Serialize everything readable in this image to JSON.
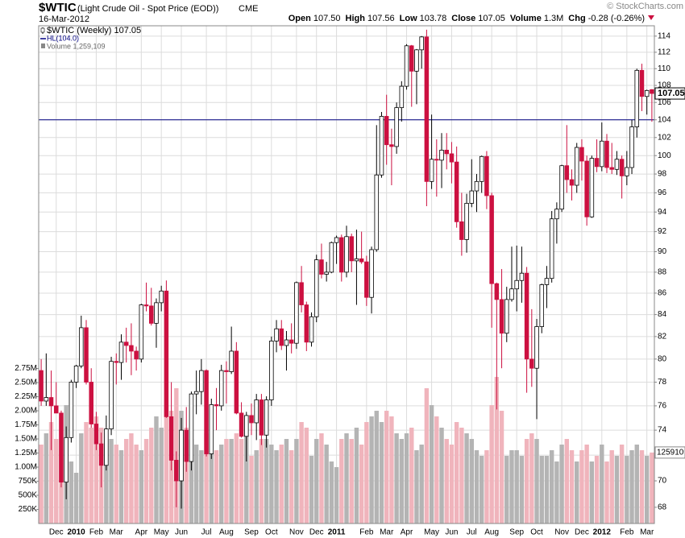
{
  "header": {
    "symbol": "$WTIC",
    "description": "(Light Crude Oil - Spot Price (EOD))",
    "exchange": "CME",
    "date": "16-Mar-2012",
    "copyright": "© StockCharts.com",
    "quote": [
      {
        "label": "Open",
        "value": "107.50"
      },
      {
        "label": "High",
        "value": "107.56"
      },
      {
        "label": "Low",
        "value": "103.78"
      },
      {
        "label": "Close",
        "value": "107.05"
      },
      {
        "label": "Volume",
        "value": "1.3M"
      },
      {
        "label": "Chg",
        "value": "-0.28 (-0.26%)"
      }
    ]
  },
  "chart_data": {
    "type": "candlestick",
    "legend": [
      "$WTIC (Weekly) 107.05",
      "HL(104.0)",
      "Volume 1,259,109"
    ],
    "hl_line": 104.0,
    "hl_color": "#000080",
    "up_color": "#000000",
    "down_color": "#cc1040",
    "volume_up_color": "#b4b4b4",
    "volume_down_color": "#f0b4bc",
    "log": true,
    "grid": true,
    "ylim": [
      66.8,
      115.3
    ],
    "yticks": [
      68,
      70,
      72,
      74,
      76,
      78,
      80,
      82,
      84,
      86,
      88,
      90,
      92,
      94,
      96,
      98,
      100,
      102,
      104,
      106,
      108,
      110,
      112,
      114
    ],
    "y2lim": [
      0,
      8830000
    ],
    "y2ticks": [
      {
        "value": 250000,
        "label": "250K"
      },
      {
        "value": 500000,
        "label": "500K"
      },
      {
        "value": 750000,
        "label": "750K"
      },
      {
        "value": 1000000,
        "label": "1.00M"
      },
      {
        "value": 1250000,
        "label": "1.25M"
      },
      {
        "value": 1500000,
        "label": "1.50M"
      },
      {
        "value": 1750000,
        "label": "1.75M"
      },
      {
        "value": 2000000,
        "label": "2.00M"
      },
      {
        "value": 2250000,
        "label": "2.25M"
      },
      {
        "value": 2500000,
        "label": "2.50M"
      },
      {
        "value": 2750000,
        "label": "2.75M"
      }
    ],
    "categories": [
      null,
      null,
      null,
      "Dec",
      null,
      null,
      null,
      "2010",
      null,
      null,
      null,
      "Feb",
      null,
      null,
      null,
      "Mar",
      null,
      null,
      null,
      null,
      "Apr",
      null,
      null,
      null,
      "May",
      null,
      null,
      null,
      "Jun",
      null,
      null,
      null,
      null,
      "Jul",
      null,
      null,
      null,
      "Aug",
      null,
      null,
      null,
      null,
      "Sep",
      null,
      null,
      null,
      "Oct",
      null,
      null,
      null,
      null,
      "Nov",
      null,
      null,
      null,
      "Dec",
      null,
      null,
      null,
      "2011",
      null,
      null,
      null,
      null,
      null,
      "Feb",
      null,
      null,
      null,
      "Mar",
      null,
      null,
      null,
      "Apr",
      null,
      null,
      null,
      null,
      "May",
      null,
      null,
      null,
      "Jun",
      null,
      null,
      null,
      "Jul",
      null,
      null,
      null,
      "Aug",
      null,
      null,
      null,
      null,
      "Sep",
      null,
      null,
      null,
      "Oct",
      null,
      null,
      null,
      null,
      "Nov",
      null,
      null,
      null,
      "Dec",
      null,
      null,
      null,
      "2012",
      null,
      null,
      null,
      null,
      "Feb",
      null,
      null,
      null,
      "Mar",
      null
    ],
    "open": [
      79.0,
      76.4,
      76.7,
      76.0,
      75.4,
      69.9,
      73.4,
      78.0,
      79.4,
      82.8,
      78.0,
      74.5,
      72.9,
      71.2,
      74.1,
      79.8,
      79.7,
      81.5,
      81.2,
      80.7,
      80.0,
      84.9,
      84.8,
      83.2,
      85.1,
      86.2,
      75.1,
      71.6,
      70.0,
      74.0,
      71.5,
      77.0,
      77.2,
      79.0,
      72.1,
      76.1,
      76.0,
      79.0,
      78.9,
      80.7,
      75.4,
      73.5,
      75.2,
      74.6,
      76.5,
      73.6,
      76.5,
      81.6,
      82.7,
      81.2,
      81.7,
      81.4,
      87.0,
      84.9,
      81.5,
      83.8,
      89.2,
      87.8,
      88.0,
      90.9,
      91.4,
      88.0,
      91.5,
      89.1,
      89.3,
      89.0,
      85.6,
      90.2,
      97.9,
      104.4,
      101.2,
      101.0,
      105.4,
      107.9,
      112.8,
      109.7,
      112.3,
      113.9,
      97.2,
      99.6,
      99.5,
      100.6,
      100.2,
      99.3,
      93.0,
      91.2,
      94.9,
      96.2,
      97.2,
      99.9,
      95.7,
      86.9,
      85.4,
      82.3,
      85.4,
      86.4,
      87.2,
      87.9,
      80.0,
      79.2,
      82.9,
      86.8,
      87.4,
      93.3,
      94.3,
      98.9,
      97.4,
      96.8,
      100.9,
      99.4,
      93.5,
      99.7,
      98.8,
      101.6,
      98.7,
      98.5,
      99.6,
      97.8,
      98.7,
      103.2,
      109.8,
      106.7,
      107.5
    ],
    "high": [
      80.0,
      80.5,
      79.0,
      78.0,
      75.6,
      74.3,
      78.2,
      79.5,
      83.9,
      83.5,
      79.2,
      75.5,
      73.8,
      75.2,
      80.2,
      80.5,
      82.2,
      82.8,
      83.2,
      81.1,
      85.0,
      87.0,
      86.5,
      85.5,
      86.7,
      87.2,
      78.0,
      72.3,
      75.0,
      75.9,
      77.2,
      79.0,
      80.0,
      79.1,
      76.6,
      77.5,
      79.5,
      79.8,
      82.9,
      81.5,
      76.3,
      75.5,
      76.2,
      77.0,
      77.0,
      76.8,
      82.0,
      83.5,
      83.5,
      82.5,
      83.2,
      87.1,
      88.6,
      85.2,
      84.2,
      89.7,
      90.8,
      89.0,
      91.0,
      91.6,
      91.7,
      92.6,
      91.8,
      92.2,
      92.0,
      89.6,
      90.5,
      103.4,
      104.9,
      106.9,
      103.0,
      106.0,
      108.5,
      113.0,
      112.9,
      112.4,
      114.0,
      114.8,
      104.6,
      101.8,
      102.5,
      102.5,
      101.5,
      101.0,
      96.0,
      95.9,
      99.6,
      98.0,
      100.0,
      100.5,
      96.0,
      87.0,
      88.3,
      86.6,
      90.5,
      90.6,
      90.5,
      88.5,
      84.5,
      83.6,
      86.9,
      88.6,
      94.1,
      95.0,
      99.0,
      103.4,
      98.5,
      101.4,
      101.8,
      100.0,
      100.0,
      101.8,
      103.7,
      102.4,
      101.4,
      100.5,
      100.0,
      100.5,
      104.0,
      110.0,
      110.6,
      107.5,
      107.56
    ],
    "low": [
      76.0,
      76.0,
      72.4,
      75.5,
      69.5,
      68.6,
      73.0,
      77.5,
      79.2,
      77.8,
      74.2,
      72.4,
      69.5,
      70.8,
      73.6,
      77.8,
      78.2,
      79.7,
      78.6,
      79.0,
      79.7,
      84.3,
      83.0,
      81.0,
      84.3,
      75.0,
      70.8,
      68.0,
      67.9,
      70.7,
      70.8,
      75.3,
      76.1,
      71.9,
      71.7,
      74.0,
      75.6,
      76.2,
      78.7,
      75.3,
      73.4,
      71.5,
      73.6,
      73.2,
      72.8,
      72.6,
      76.0,
      80.6,
      80.8,
      79.0,
      80.5,
      80.9,
      84.2,
      80.7,
      81.1,
      83.3,
      87.4,
      87.1,
      87.9,
      88.8,
      87.1,
      87.5,
      88.0,
      84.9,
      88.8,
      84.8,
      84.1,
      90.0,
      97.6,
      99.0,
      96.8,
      100.2,
      103.8,
      107.5,
      105.5,
      105.8,
      110.0,
      94.6,
      96.4,
      95.6,
      96.5,
      98.5,
      97.0,
      92.4,
      89.6,
      89.9,
      94.5,
      94.0,
      96.0,
      94.3,
      82.8,
      75.7,
      79.2,
      81.5,
      85.2,
      84.3,
      85.1,
      77.1,
      77.6,
      74.9,
      82.3,
      84.6,
      87.0,
      90.8,
      94.0,
      96.0,
      95.2,
      96.0,
      97.3,
      92.6,
      93.4,
      98.2,
      98.3,
      98.1,
      98.0,
      97.9,
      95.4,
      96.8,
      98.0,
      102.0,
      105.0,
      104.6,
      103.78
    ],
    "close": [
      76.4,
      76.7,
      76.0,
      75.4,
      69.9,
      73.4,
      78.0,
      79.4,
      82.8,
      78.0,
      74.5,
      72.9,
      71.2,
      74.1,
      79.8,
      79.7,
      81.5,
      81.2,
      80.7,
      80.0,
      84.9,
      84.8,
      83.2,
      85.1,
      86.2,
      75.1,
      71.6,
      70.0,
      74.0,
      71.5,
      77.0,
      77.2,
      79.0,
      72.1,
      76.1,
      76.0,
      79.0,
      78.9,
      80.7,
      75.4,
      73.5,
      75.2,
      74.6,
      76.5,
      73.6,
      76.5,
      81.6,
      82.7,
      81.2,
      81.7,
      81.4,
      87.0,
      84.9,
      81.5,
      83.8,
      89.2,
      87.8,
      88.0,
      90.9,
      91.4,
      88.0,
      91.5,
      89.1,
      89.3,
      89.0,
      85.6,
      90.2,
      97.9,
      104.4,
      101.2,
      101.0,
      105.4,
      107.9,
      112.8,
      109.7,
      112.3,
      113.9,
      97.2,
      99.6,
      99.5,
      100.6,
      100.2,
      99.3,
      93.0,
      91.2,
      94.9,
      96.2,
      97.2,
      99.9,
      95.7,
      86.9,
      85.4,
      82.3,
      85.4,
      86.4,
      87.2,
      87.9,
      80.0,
      79.2,
      82.9,
      86.8,
      87.4,
      93.3,
      94.3,
      98.9,
      97.4,
      96.8,
      100.9,
      99.4,
      93.5,
      99.7,
      98.8,
      101.6,
      98.7,
      98.5,
      99.6,
      97.8,
      98.7,
      103.2,
      109.8,
      106.7,
      107.4,
      107.05
    ],
    "volume": [
      1400000,
      1600000,
      1800000,
      1500000,
      1900000,
      2100000,
      1100000,
      900000,
      1600000,
      1800000,
      1700000,
      1900000,
      1700000,
      1600000,
      1500000,
      1400000,
      1300000,
      1500000,
      1600000,
      1400000,
      1300000,
      1500000,
      1700000,
      1900000,
      1700000,
      2100000,
      2000000,
      2400000,
      2000000,
      1700000,
      1500000,
      1400000,
      1300000,
      1600000,
      1300000,
      1300000,
      1400000,
      1500000,
      1500000,
      1600000,
      1500000,
      1700000,
      1200000,
      1300000,
      1500000,
      1500000,
      1400000,
      1300000,
      1400000,
      1500000,
      1300000,
      1500000,
      1800000,
      1700000,
      1200000,
      1500000,
      1600000,
      1400000,
      1100000,
      1000000,
      1500000,
      1600000,
      1500000,
      1700000,
      1400000,
      1800000,
      1900000,
      2000000,
      1800000,
      2000000,
      1900000,
      1600000,
      1500000,
      1600000,
      1700000,
      1300000,
      1400000,
      2400000,
      2100000,
      1900000,
      1700000,
      1500000,
      1400000,
      1800000,
      1700000,
      1600000,
      1500000,
      1300000,
      1200000,
      1300000,
      2100000,
      2600000,
      2000000,
      1200000,
      1300000,
      1300000,
      1200000,
      1500000,
      1600000,
      1500000,
      1200000,
      1200000,
      1300000,
      1100000,
      1400000,
      1500000,
      1300000,
      1100000,
      1300000,
      1400000,
      1100000,
      1200000,
      1400000,
      1100000,
      1300000,
      1200000,
      1400000,
      1200000,
      1300000,
      1400000,
      1300000,
      1200000,
      1259109
    ]
  }
}
